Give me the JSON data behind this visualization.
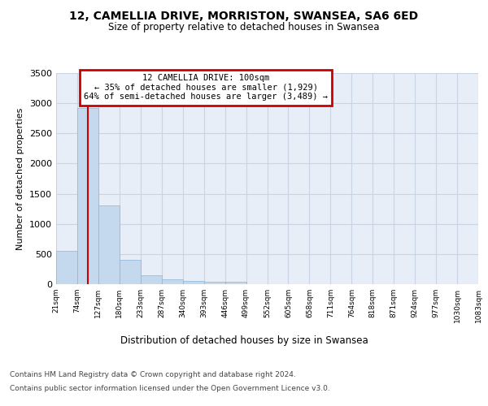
{
  "title": "12, CAMELLIA DRIVE, MORRISTON, SWANSEA, SA6 6ED",
  "subtitle": "Size of property relative to detached houses in Swansea",
  "xlabel": "Distribution of detached houses by size in Swansea",
  "ylabel": "Number of detached properties",
  "bin_labels": [
    "21sqm",
    "74sqm",
    "127sqm",
    "180sqm",
    "233sqm",
    "287sqm",
    "340sqm",
    "393sqm",
    "446sqm",
    "499sqm",
    "552sqm",
    "605sqm",
    "658sqm",
    "711sqm",
    "764sqm",
    "818sqm",
    "871sqm",
    "924sqm",
    "977sqm",
    "1030sqm",
    "1083sqm"
  ],
  "bar_values": [
    550,
    2920,
    1310,
    410,
    150,
    75,
    55,
    45,
    35,
    0,
    0,
    0,
    0,
    0,
    0,
    0,
    0,
    0,
    0,
    0
  ],
  "bar_color": "#c5d9ee",
  "bar_edge_color": "#8ab4d8",
  "grid_color": "#c8d4e4",
  "bg_color": "#e8eef8",
  "annotation_text": "12 CAMELLIA DRIVE: 100sqm\n← 35% of detached houses are smaller (1,929)\n64% of semi-detached houses are larger (3,489) →",
  "annotation_box_edgecolor": "#cc0000",
  "ylim": [
    0,
    3500
  ],
  "yticks": [
    0,
    500,
    1000,
    1500,
    2000,
    2500,
    3000,
    3500
  ],
  "bin_starts": [
    21,
    74,
    127,
    180,
    233,
    287,
    340,
    393,
    446,
    499,
    552,
    605,
    658,
    711,
    764,
    818,
    871,
    924,
    977,
    1030,
    1083
  ],
  "property_sqm": 100,
  "red_line_color": "#cc0000",
  "footer_line1": "Contains HM Land Registry data © Crown copyright and database right 2024.",
  "footer_line2": "Contains public sector information licensed under the Open Government Licence v3.0."
}
